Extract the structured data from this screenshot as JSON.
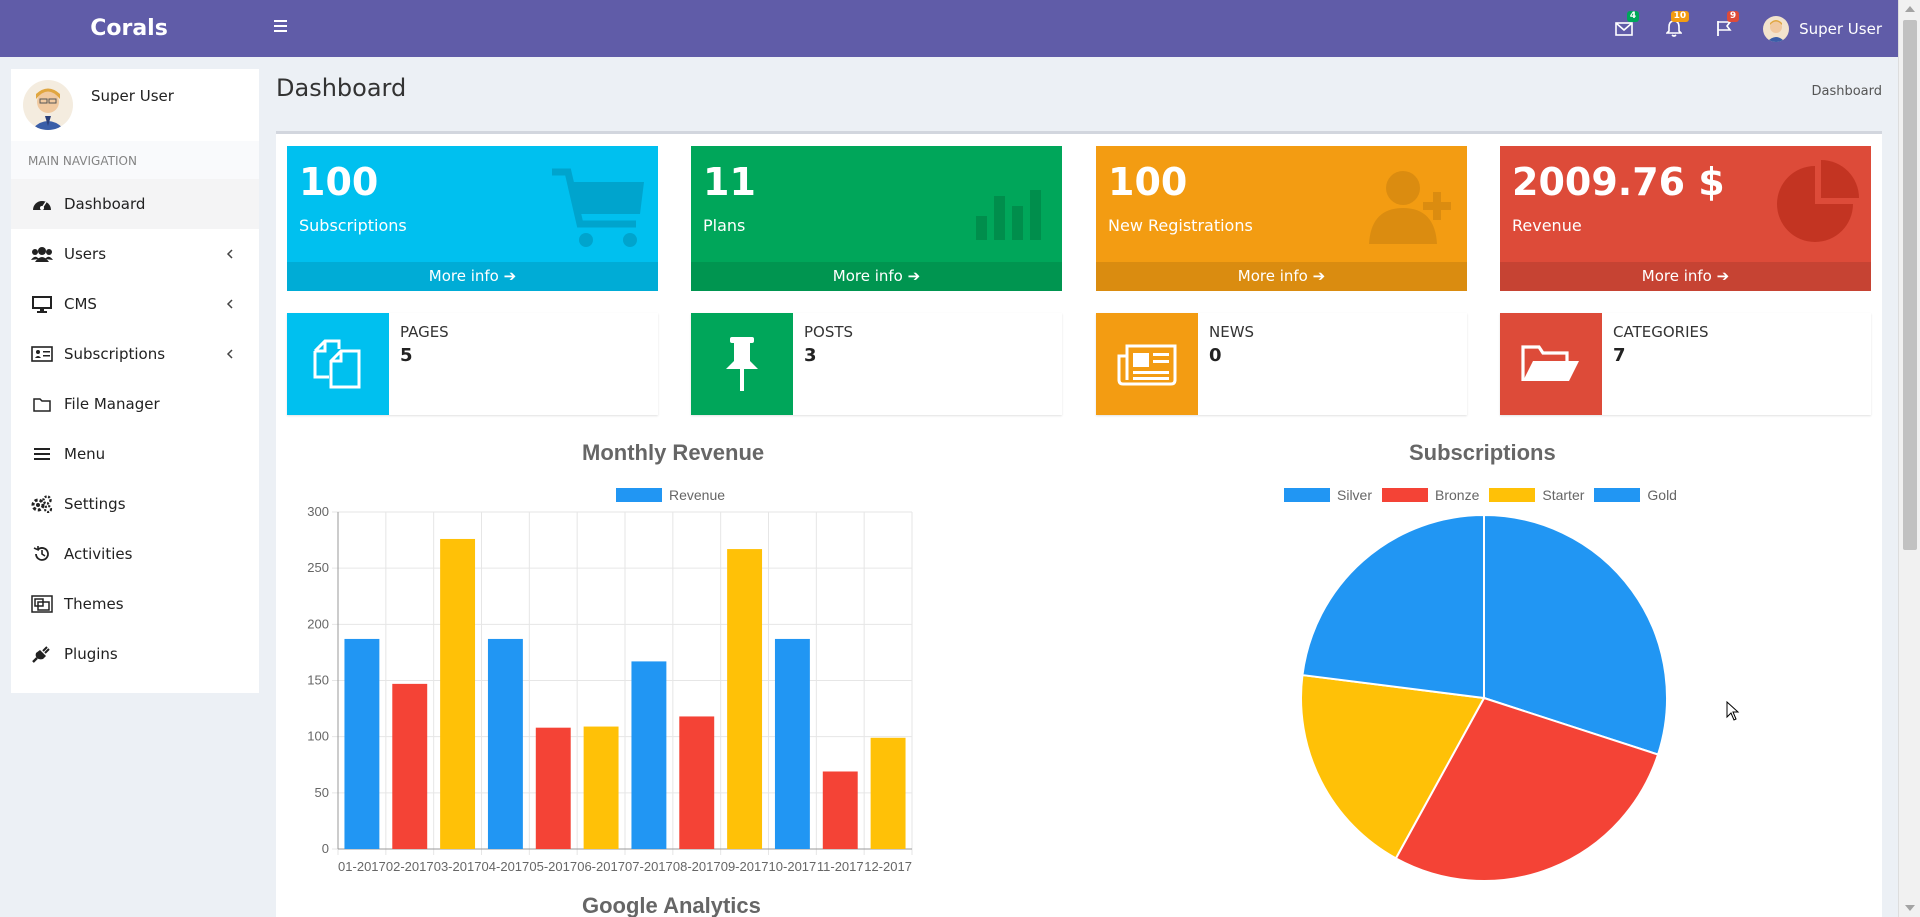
{
  "app": {
    "brand": "Corals"
  },
  "header": {
    "badges": {
      "mail": "4",
      "bell": "10",
      "flag": "9"
    },
    "badge_colors": {
      "mail": "#00a65a",
      "bell": "#f39c12",
      "flag": "#dd4b39"
    },
    "user_name": "Super User"
  },
  "sidebar": {
    "user_name": "Super User",
    "nav_header": "MAIN NAVIGATION",
    "items": [
      {
        "label": "Dashboard",
        "icon": "dashboard-icon"
      },
      {
        "label": "Users",
        "icon": "users-icon"
      },
      {
        "label": "CMS",
        "icon": "desktop-icon"
      },
      {
        "label": "Subscriptions",
        "icon": "id-card-icon"
      },
      {
        "label": "File Manager",
        "icon": "folder-icon"
      },
      {
        "label": "Menu",
        "icon": "menu-icon"
      },
      {
        "label": "Settings",
        "icon": "cogs-icon"
      },
      {
        "label": "Activities",
        "icon": "history-icon"
      },
      {
        "label": "Themes",
        "icon": "themes-icon"
      },
      {
        "label": "Plugins",
        "icon": "plug-icon"
      }
    ]
  },
  "page": {
    "title": "Dashboard",
    "breadcrumb": "Dashboard"
  },
  "stat_boxes": [
    {
      "value": "100",
      "label": "Subscriptions",
      "footer": "More info",
      "color": "#00c0ef",
      "icon": "cart-icon"
    },
    {
      "value": "11",
      "label": "Plans",
      "footer": "More info",
      "color": "#00a65a",
      "icon": "bar-chart-icon"
    },
    {
      "value": "100",
      "label": "New Registrations",
      "footer": "More info",
      "color": "#f39c12",
      "icon": "user-plus-icon"
    },
    {
      "value": "2009.76 $",
      "label": "Revenue",
      "footer": "More info",
      "color": "#dd4b39",
      "icon": "pie-chart-icon"
    }
  ],
  "info_boxes": [
    {
      "label": "PAGES",
      "value": "5",
      "color": "#00c0ef",
      "icon": "copy-icon"
    },
    {
      "label": "POSTS",
      "value": "3",
      "color": "#00a65a",
      "icon": "pin-icon"
    },
    {
      "label": "NEWS",
      "value": "0",
      "color": "#f39c12",
      "icon": "newspaper-icon"
    },
    {
      "label": "CATEGORIES",
      "value": "7",
      "color": "#dd4b39",
      "icon": "folder-open-icon"
    }
  ],
  "chart_data": [
    {
      "type": "bar",
      "title": "Monthly Revenue",
      "legend": [
        "Revenue"
      ],
      "legend_color": "#2196f3",
      "categories": [
        "01-2017",
        "02-2017",
        "03-2017",
        "04-2017",
        "05-2017",
        "06-2017",
        "07-2017",
        "08-2017",
        "09-2017",
        "10-2017",
        "11-2017",
        "12-2017"
      ],
      "values": [
        187,
        147,
        276,
        187,
        108,
        109,
        167,
        118,
        267,
        187,
        69,
        99
      ],
      "bar_colors": [
        "#2196f3",
        "#f44336",
        "#ffc107",
        "#2196f3",
        "#f44336",
        "#ffc107",
        "#2196f3",
        "#f44336",
        "#ffc107",
        "#2196f3",
        "#f44336",
        "#ffc107"
      ],
      "ylim": [
        0,
        300
      ],
      "yticks": [
        0,
        50,
        100,
        150,
        200,
        250,
        300
      ],
      "grid": true
    },
    {
      "type": "pie",
      "title": "Subscriptions",
      "labels": [
        "Silver",
        "Bronze",
        "Starter",
        "Gold"
      ],
      "values": [
        30,
        28,
        19,
        23
      ],
      "colors": [
        "#2196f3",
        "#f44336",
        "#ffc107",
        "#2196f3"
      ]
    }
  ],
  "next_section_title": "Google Analytics"
}
